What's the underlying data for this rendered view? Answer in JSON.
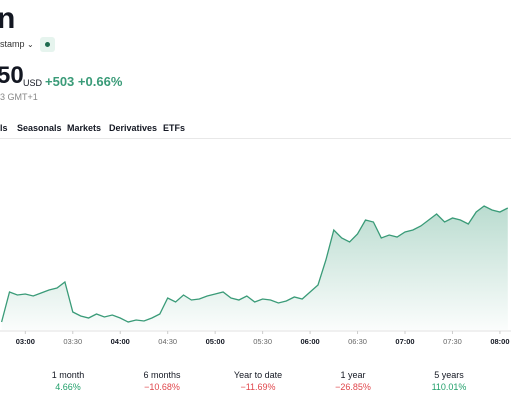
{
  "header": {
    "title": "n",
    "exchange": "stamp",
    "price": "50",
    "currency": "USD",
    "change": "+503",
    "change_percent": "+0.66%",
    "time": "3 GMT+1"
  },
  "tabs": [
    "ls",
    "Seasonals",
    "Markets",
    "Derivatives",
    "ETFs"
  ],
  "chart_data": {
    "type": "area",
    "color": "#3a9b78",
    "x": [
      165,
      170,
      175,
      180,
      185,
      190,
      195,
      200,
      205,
      210,
      215,
      220,
      225,
      230,
      235,
      240,
      245,
      250,
      255,
      260,
      265,
      270,
      275,
      280,
      285,
      290,
      295,
      300,
      305,
      310,
      315,
      320,
      325,
      330,
      335,
      340,
      345,
      350,
      355,
      360,
      365,
      370,
      375,
      380,
      385,
      390,
      395,
      400,
      405,
      410,
      415,
      420,
      425,
      430,
      435,
      440,
      445,
      450,
      455,
      460,
      465,
      470,
      475,
      480,
      485
    ],
    "values": [
      8,
      38,
      35,
      36,
      34,
      37,
      40,
      42,
      48,
      18,
      14,
      12,
      16,
      13,
      15,
      12,
      8,
      10,
      9,
      12,
      16,
      32,
      28,
      35,
      30,
      31,
      34,
      36,
      38,
      32,
      30,
      34,
      28,
      31,
      30,
      27,
      29,
      33,
      31,
      38,
      45,
      70,
      100,
      92,
      88,
      96,
      110,
      108,
      92,
      95,
      93,
      98,
      100,
      104,
      110,
      116,
      108,
      112,
      110,
      106,
      118,
      124,
      120,
      118,
      122
    ],
    "xlim": [
      164,
      487
    ],
    "ylim": [
      0,
      200
    ],
    "xticks": [
      {
        "value": 180,
        "label": "03:00"
      },
      {
        "value": 210,
        "label": "03:30"
      },
      {
        "value": 240,
        "label": "04:00"
      },
      {
        "value": 270,
        "label": "04:30"
      },
      {
        "value": 300,
        "label": "05:00"
      },
      {
        "value": 330,
        "label": "05:30"
      },
      {
        "value": 360,
        "label": "06:00"
      },
      {
        "value": 390,
        "label": "06:30"
      },
      {
        "value": 420,
        "label": "07:00"
      },
      {
        "value": 450,
        "label": "07:30"
      },
      {
        "value": 480,
        "label": "08:00"
      }
    ]
  },
  "performance": [
    {
      "period": "1 month",
      "value": "4.66%",
      "color": "#22a06b"
    },
    {
      "period": "6 months",
      "value": "−10.68%",
      "color": "#e0474c"
    },
    {
      "period": "Year to date",
      "value": "−11.69%",
      "color": "#e0474c"
    },
    {
      "period": "1 year",
      "value": "−26.85%",
      "color": "#e0474c"
    },
    {
      "period": "5 years",
      "value": "110.01%",
      "color": "#22a06b"
    }
  ]
}
